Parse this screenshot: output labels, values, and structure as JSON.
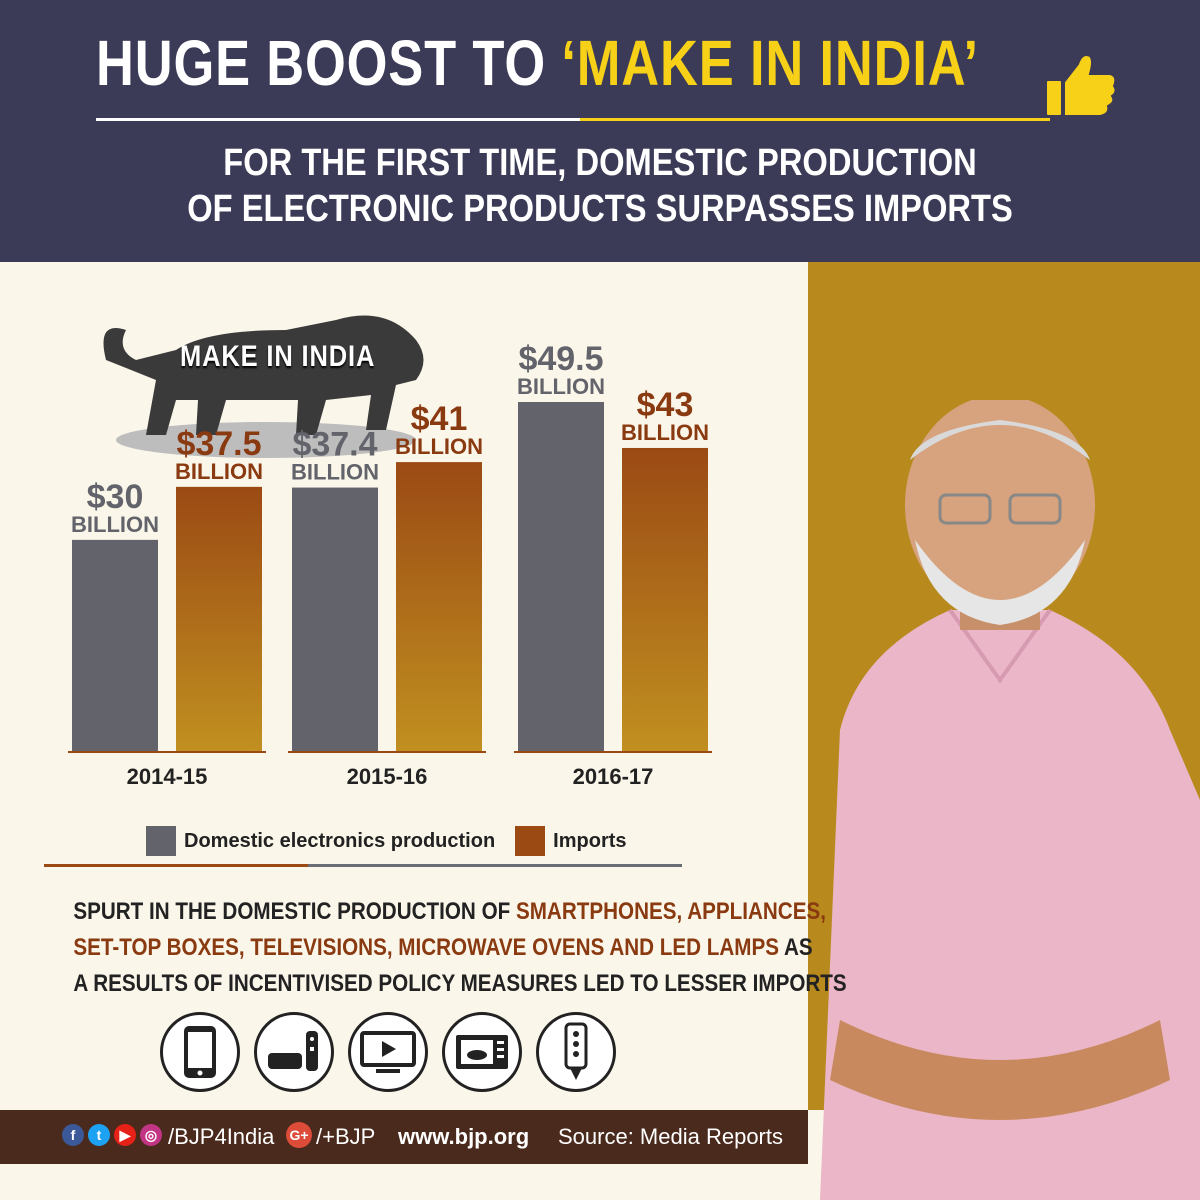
{
  "header": {
    "title_main": "HUGE BOOST TO ",
    "title_highlight": "‘MAKE IN INDIA’",
    "subtitle_line1": "FOR THE FIRST TIME, DOMESTIC PRODUCTION",
    "subtitle_line2": "OF ELECTRONIC PRODUCTS SURPASSES IMPORTS"
  },
  "logo": {
    "label": "MAKE IN INDIA",
    "icon": "lion-icon"
  },
  "chart_data": {
    "type": "bar",
    "categories": [
      "2014-15",
      "2015-16",
      "2016-17"
    ],
    "unit_label": "BILLION",
    "series": [
      {
        "name": "Domestic electronics production",
        "values": [
          30,
          37.4,
          49.5
        ],
        "labels": [
          "$30",
          "$37.4",
          "$49.5"
        ],
        "color": "#63646b"
      },
      {
        "name": "Imports",
        "values": [
          37.5,
          41,
          43
        ],
        "labels": [
          "$37.5",
          "$41",
          "$43"
        ],
        "color": "#9b4a14"
      }
    ],
    "ylim": [
      0,
      49.5
    ],
    "legend": "bottom",
    "grid": false
  },
  "description": {
    "line1_a": "SPURT IN THE DOMESTIC PRODUCTION OF ",
    "line1_b": "SMARTPHONES, APPLIANCES,",
    "line2_a": "SET-TOP BOXES, TELEVISIONS, MICROWAVE OVENS AND LED LAMPS",
    "line2_b": " AS",
    "line3": "A RESULTS OF INCENTIVISED POLICY MEASURES LED TO LESSER IMPORTS"
  },
  "icons": [
    "smartphone-icon",
    "set-top-box-icon",
    "television-icon",
    "microwave-oven-icon",
    "led-lamp-icon"
  ],
  "footer": {
    "handle": "/BJP4India",
    "gplus": "/+BJP",
    "gplus_badge": "G+",
    "url": "www.bjp.org",
    "source": "Source: Media Reports"
  },
  "colors": {
    "header_bg": "#3b3a57",
    "highlight": "#f7d117",
    "gold_panel": "#b88a1e",
    "footer_bg": "#4a2a1c"
  }
}
